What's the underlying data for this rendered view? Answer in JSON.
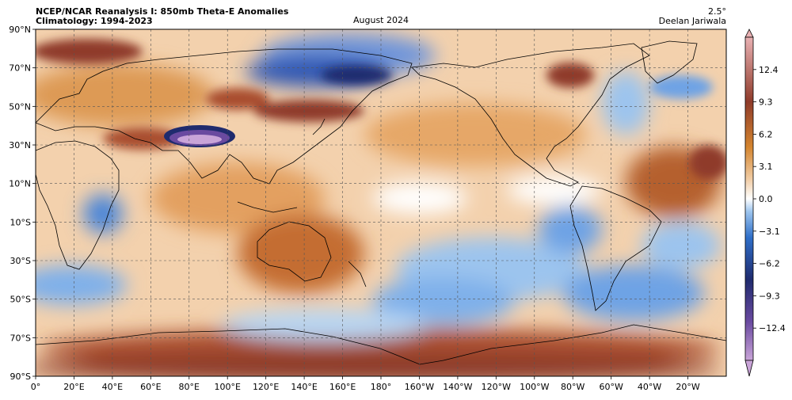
{
  "header": {
    "title_line1": "NCEP/NCAR Reanalysis I: 850mb Theta-E Anomalies",
    "title_line2": "Climatology: 1994-2023",
    "period": "August 2024",
    "resolution": "2.5°",
    "author": "Deelan Jariwala"
  },
  "map": {
    "projection": "equirectangular",
    "lon_labels": [
      "0°",
      "20°E",
      "40°E",
      "60°E",
      "80°E",
      "100°E",
      "120°E",
      "140°E",
      "160°E",
      "180°",
      "160°W",
      "140°W",
      "120°W",
      "100°W",
      "80°W",
      "60°W",
      "40°W",
      "20°W"
    ],
    "lat_labels": [
      "90°N",
      "70°N",
      "50°N",
      "30°N",
      "10°N",
      "10°S",
      "30°S",
      "50°S",
      "70°S",
      "90°S"
    ],
    "grid": "dashed"
  },
  "colorbar": {
    "ticks": [
      "12.4",
      "9.3",
      "6.2",
      "3.1",
      "0.0",
      "−3.1",
      "−6.2",
      "−9.3",
      "−12.4"
    ],
    "colors": [
      "#c9a4d8",
      "#6a4aa0",
      "#1f2b6e",
      "#2f6fc9",
      "#9cc4ee",
      "#ffffff",
      "#f1cda6",
      "#d4852f",
      "#8f3b2a",
      "#e9b1b3"
    ]
  },
  "chart_data": {
    "type": "heatmap",
    "title": "NCEP/NCAR Reanalysis I: 850mb Theta-E Anomalies",
    "subtitle": "Climatology: 1994-2023",
    "xlim": [
      0,
      360
    ],
    "ylim": [
      -90,
      90
    ],
    "colorbar_range": [
      -15.5,
      15.5
    ],
    "anomaly_regions": [
      {
        "lon": 15,
        "lat": 80,
        "value": 9
      },
      {
        "lon": 90,
        "lat": 37,
        "value": -14
      },
      {
        "lon": 140,
        "lat": 68,
        "value": -7
      },
      {
        "lon": 180,
        "lat": 66,
        "value": -6
      },
      {
        "lon": 95,
        "lat": 45,
        "value": 8
      },
      {
        "lon": 160,
        "lat": 50,
        "value": 7
      },
      {
        "lon": 278,
        "lat": 68,
        "value": 8
      },
      {
        "lon": 25,
        "lat": -10,
        "value": -5
      },
      {
        "lon": 140,
        "lat": -25,
        "value": 7
      },
      {
        "lon": 300,
        "lat": -20,
        "value": -7
      },
      {
        "lon": 330,
        "lat": -48,
        "value": -6
      },
      {
        "lon": 200,
        "lat": -45,
        "value": -4
      },
      {
        "lon": 30,
        "lat": -80,
        "value": 9
      },
      {
        "lon": 330,
        "lat": -82,
        "value": 9
      }
    ]
  }
}
